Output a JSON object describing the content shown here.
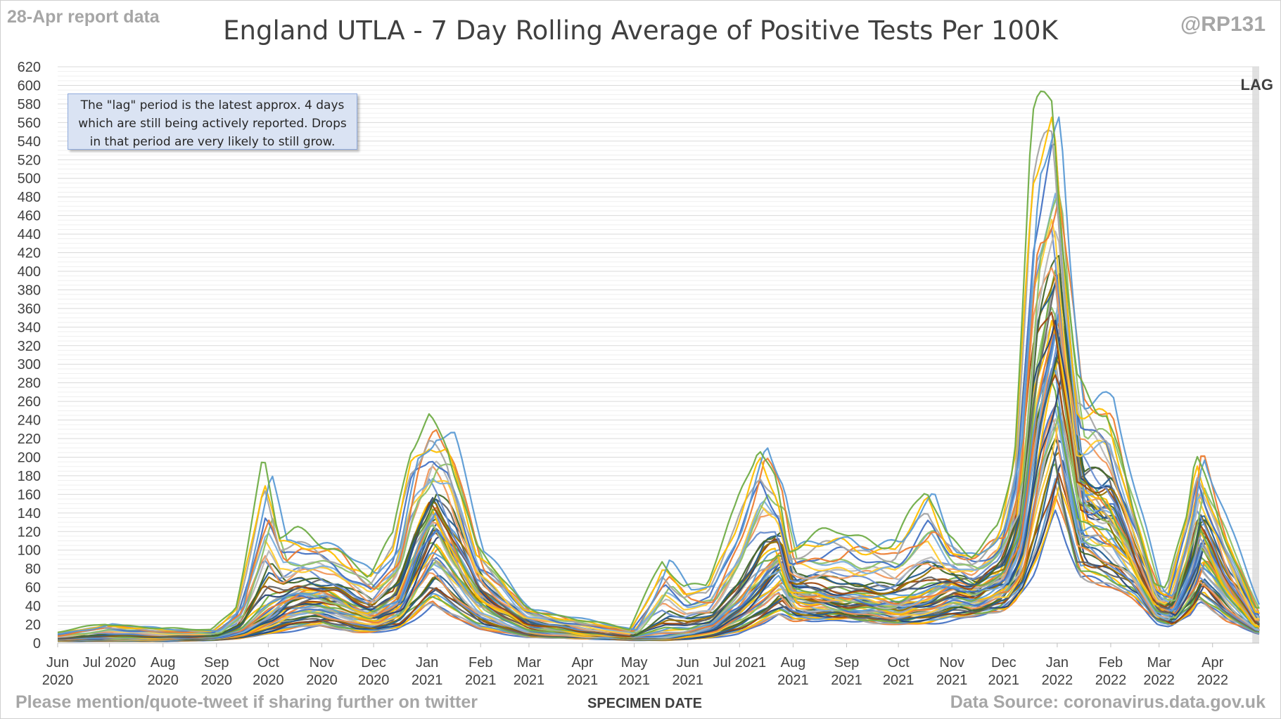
{
  "header": {
    "report_date": "28-Apr report data",
    "title": "England UTLA - 7 Day Rolling Average of Positive Tests Per 100K",
    "handle": "@RP131"
  },
  "note": {
    "line1": "The \"lag\" period is the latest approx. 4 days",
    "line2": "which are still being actively reported. Drops",
    "line3": "in that period are very likely to still grow."
  },
  "lag_label": "LAG",
  "footer": {
    "left": "Please mention/quote-tweet if sharing further on twitter",
    "xlabel": "SPECIMEN DATE",
    "right": "Data Source: coronavirus.data.gov.uk"
  },
  "chart_data": {
    "type": "line",
    "title": "England UTLA - 7 Day Rolling Average of Positive Tests Per 100K",
    "xlabel": "SPECIMEN DATE",
    "ylabel": "",
    "ylim": [
      0,
      620
    ],
    "yticks": [
      0,
      20,
      40,
      60,
      80,
      100,
      120,
      140,
      160,
      180,
      200,
      220,
      240,
      260,
      280,
      300,
      320,
      340,
      360,
      380,
      400,
      420,
      440,
      460,
      480,
      500,
      520,
      540,
      560,
      580,
      600,
      620
    ],
    "xlim": [
      "2020-06-01",
      "2022-04-28"
    ],
    "xticks": [
      {
        "date": "2020-06-01",
        "line1": "Jun",
        "line2": "2020"
      },
      {
        "date": "2020-07-01",
        "line1": "Jul 2020",
        "line2": ""
      },
      {
        "date": "2020-08-01",
        "line1": "Aug",
        "line2": "2020"
      },
      {
        "date": "2020-09-01",
        "line1": "Sep",
        "line2": "2020"
      },
      {
        "date": "2020-10-01",
        "line1": "Oct",
        "line2": "2020"
      },
      {
        "date": "2020-11-01",
        "line1": "Nov",
        "line2": "2020"
      },
      {
        "date": "2020-12-01",
        "line1": "Dec",
        "line2": "2020"
      },
      {
        "date": "2021-01-01",
        "line1": "Jan",
        "line2": "2021"
      },
      {
        "date": "2021-02-01",
        "line1": "Feb",
        "line2": "2021"
      },
      {
        "date": "2021-03-01",
        "line1": "Mar",
        "line2": "2021"
      },
      {
        "date": "2021-04-01",
        "line1": "Apr",
        "line2": "2021"
      },
      {
        "date": "2021-05-01",
        "line1": "May",
        "line2": "2021"
      },
      {
        "date": "2021-06-01",
        "line1": "Jun",
        "line2": "2021"
      },
      {
        "date": "2021-07-01",
        "line1": "Jul 2021",
        "line2": ""
      },
      {
        "date": "2021-08-01",
        "line1": "Aug",
        "line2": "2021"
      },
      {
        "date": "2021-09-01",
        "line1": "Sep",
        "line2": "2021"
      },
      {
        "date": "2021-10-01",
        "line1": "Oct",
        "line2": "2021"
      },
      {
        "date": "2021-11-01",
        "line1": "Nov",
        "line2": "2021"
      },
      {
        "date": "2021-12-01",
        "line1": "Dec",
        "line2": "2021"
      },
      {
        "date": "2022-01-01",
        "line1": "Jan",
        "line2": "2022"
      },
      {
        "date": "2022-02-01",
        "line1": "Feb",
        "line2": "2022"
      },
      {
        "date": "2022-03-01",
        "line1": "Mar",
        "line2": "2022"
      },
      {
        "date": "2022-04-01",
        "line1": "Apr",
        "line2": "2022"
      }
    ],
    "lag_period": [
      "2022-04-24",
      "2022-04-28"
    ],
    "grid": true,
    "legend": "none",
    "series_colors": [
      "#4472c4",
      "#ed7d31",
      "#a5a5a5",
      "#ffc000",
      "#5b9bd5",
      "#70ad47",
      "#264478",
      "#9e480e",
      "#636363",
      "#997300",
      "#255e91",
      "#43682b",
      "#698ed0",
      "#f1975a",
      "#b7b7b7",
      "#ffcd33",
      "#7cafdd",
      "#8cc168"
    ],
    "envelope": {
      "x": [
        "2020-06-01",
        "2020-07-01",
        "2020-08-01",
        "2020-09-01",
        "2020-09-15",
        "2020-10-01",
        "2020-10-10",
        "2020-10-20",
        "2020-11-01",
        "2020-11-10",
        "2020-11-20",
        "2020-12-01",
        "2020-12-15",
        "2020-12-25",
        "2021-01-05",
        "2021-01-15",
        "2021-02-01",
        "2021-03-01",
        "2021-04-01",
        "2021-05-01",
        "2021-05-20",
        "2021-06-01",
        "2021-06-15",
        "2021-07-01",
        "2021-07-15",
        "2021-07-25",
        "2021-08-01",
        "2021-09-01",
        "2021-10-01",
        "2021-10-20",
        "2021-11-01",
        "2021-11-15",
        "2021-12-01",
        "2021-12-10",
        "2021-12-20",
        "2022-01-01",
        "2022-01-06",
        "2022-01-15",
        "2022-02-01",
        "2022-02-15",
        "2022-03-01",
        "2022-03-08",
        "2022-03-20",
        "2022-03-25",
        "2022-04-10",
        "2022-04-28"
      ],
      "low": [
        2,
        2,
        2,
        3,
        5,
        10,
        12,
        15,
        18,
        15,
        12,
        12,
        15,
        25,
        40,
        30,
        15,
        6,
        5,
        3,
        3,
        4,
        6,
        10,
        20,
        30,
        25,
        25,
        20,
        22,
        25,
        28,
        35,
        50,
        80,
        150,
        120,
        70,
        60,
        50,
        22,
        18,
        30,
        45,
        25,
        10
      ],
      "median": [
        4,
        5,
        5,
        6,
        12,
        30,
        45,
        50,
        50,
        45,
        35,
        30,
        45,
        90,
        130,
        100,
        50,
        18,
        10,
        6,
        6,
        10,
        18,
        40,
        70,
        90,
        55,
        45,
        40,
        50,
        60,
        55,
        70,
        110,
        250,
        350,
        280,
        150,
        140,
        90,
        40,
        35,
        80,
        115,
        60,
        18
      ],
      "high": [
        10,
        22,
        15,
        15,
        40,
        190,
        110,
        120,
        115,
        110,
        90,
        70,
        110,
        210,
        250,
        230,
        100,
        40,
        25,
        15,
        95,
        60,
        60,
        140,
        230,
        180,
        100,
        120,
        110,
        160,
        110,
        100,
        130,
        200,
        520,
        575,
        450,
        290,
        265,
        150,
        60,
        55,
        150,
        220,
        120,
        35
      ]
    }
  }
}
